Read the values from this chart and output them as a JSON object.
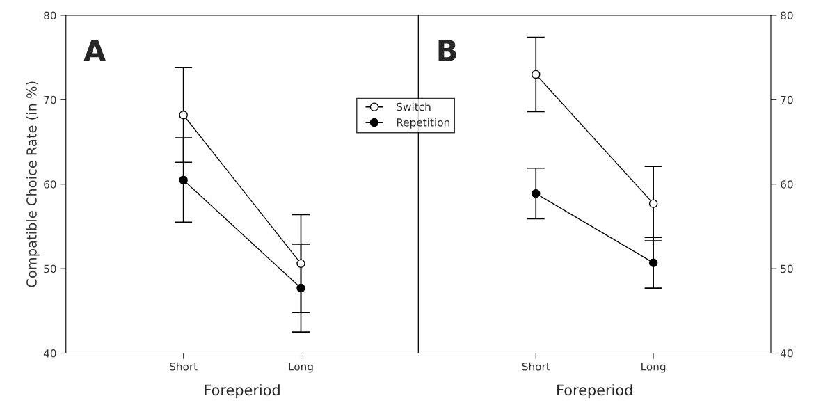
{
  "chart_data": [
    {
      "type": "line",
      "annotations": [
        "A"
      ],
      "xlabel": "Foreperiod",
      "ylabel": "Compatible Choice Rate (in %)",
      "categories": [
        "Short",
        "Long"
      ],
      "ylim": [
        40,
        80
      ],
      "yticks": [
        40,
        50,
        60,
        70,
        80
      ],
      "marker": "circle",
      "legend": false,
      "grid": false,
      "series": [
        {
          "color": "#ffffff",
          "values": [
            68.2,
            50.6
          ],
          "errors": [
            5.6,
            5.8
          ]
        },
        {
          "color": "#000000",
          "values": [
            60.5,
            47.7
          ],
          "errors": [
            5.0,
            5.2
          ]
        }
      ]
    },
    {
      "type": "line",
      "annotations": [
        "B"
      ],
      "xlabel": "Foreperiod",
      "categories": [
        "Short",
        "Long"
      ],
      "ylim": [
        40,
        80
      ],
      "yticks": [
        40,
        50,
        60,
        70,
        80
      ],
      "marker": "circle",
      "legend": "top left",
      "grid": false,
      "series": [
        {
          "name": "Switch",
          "color": "#ffffff",
          "values": [
            73.0,
            57.7
          ],
          "errors": [
            4.4,
            4.4
          ]
        },
        {
          "name": "Repetition",
          "color": "#000000",
          "values": [
            58.9,
            50.7
          ],
          "errors": [
            3.0,
            3.0
          ]
        }
      ]
    }
  ]
}
